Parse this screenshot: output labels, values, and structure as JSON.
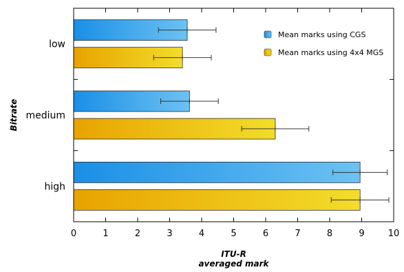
{
  "chart_data": {
    "type": "bar",
    "orientation": "horizontal",
    "categories": [
      "low",
      "medium",
      "high"
    ],
    "series": [
      {
        "name": "Mean marks using CGS",
        "values": [
          3.55,
          3.62,
          8.95
        ],
        "error": [
          0.9,
          0.9,
          0.85
        ],
        "color_start": "#1a8fe6",
        "color_end": "#6cc2f2"
      },
      {
        "name": "Mean marks using 4x4 MGS",
        "values": [
          3.4,
          6.3,
          8.95
        ],
        "error": [
          0.9,
          1.05,
          0.9
        ],
        "color_start": "#e8a300",
        "color_end": "#f2dd2a"
      }
    ],
    "xlim": [
      0,
      10
    ],
    "xticks": [
      "0",
      "1",
      "2",
      "3",
      "4",
      "5",
      "6",
      "7",
      "8",
      "9",
      "10"
    ],
    "xlabel_line1": "ITU-R",
    "xlabel_line2": "averaged mark",
    "ylabel": "Bitrate",
    "grid": false,
    "legend_position": "top-right"
  }
}
